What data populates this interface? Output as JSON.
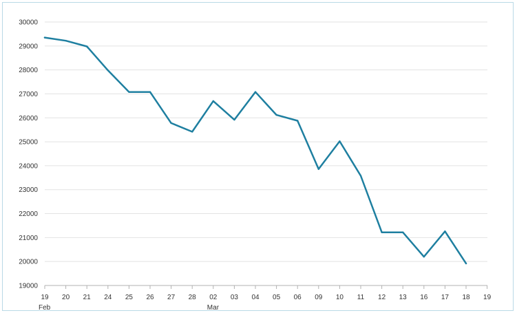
{
  "chart_data": {
    "type": "line",
    "x": [
      "19",
      "20",
      "21",
      "24",
      "25",
      "26",
      "27",
      "28",
      "02",
      "03",
      "04",
      "05",
      "06",
      "09",
      "10",
      "11",
      "12",
      "13",
      "16",
      "17",
      "18"
    ],
    "x_ticks": [
      "19",
      "20",
      "21",
      "24",
      "25",
      "26",
      "27",
      "28",
      "02",
      "03",
      "04",
      "05",
      "06",
      "09",
      "10",
      "11",
      "12",
      "13",
      "16",
      "17",
      "18",
      "19"
    ],
    "x_sublabels": [
      {
        "tick": 0,
        "text": "Feb"
      },
      {
        "tick": 8,
        "text": "Mar"
      }
    ],
    "y_ticks": [
      30000,
      29000,
      28000,
      27000,
      26000,
      25000,
      24000,
      23000,
      22000,
      21000,
      20000,
      19000
    ],
    "ylim": [
      19000,
      30000
    ],
    "series": [
      {
        "values": [
          29350,
          29220,
          28980,
          27980,
          27080,
          27080,
          25780,
          25420,
          26700,
          25920,
          27080,
          26120,
          25880,
          23860,
          25020,
          23580,
          21220,
          21220,
          20200,
          21260,
          19920
        ],
        "color": "#1e7fa0"
      }
    ],
    "grid": true,
    "legend": "none",
    "title": "",
    "xlabel": "",
    "ylabel": ""
  }
}
